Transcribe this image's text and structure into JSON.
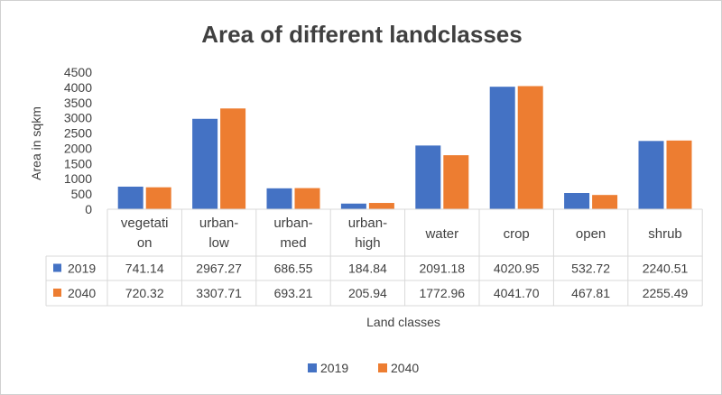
{
  "chart_data": {
    "type": "bar",
    "title": "Area of different landclasses",
    "xlabel": "Land classes",
    "ylabel": "Area in sqkm",
    "ylim": [
      0,
      4500
    ],
    "yticks": [
      0,
      500,
      1000,
      1500,
      2000,
      2500,
      3000,
      3500,
      4000,
      4500
    ],
    "grid": false,
    "legend_position": "bottom",
    "categories": [
      [
        "vegetati",
        "on"
      ],
      [
        "urban-",
        "low"
      ],
      [
        "urban-",
        "med"
      ],
      [
        "urban-",
        "high"
      ],
      [
        "water"
      ],
      [
        "crop"
      ],
      [
        "open"
      ],
      [
        "shrub"
      ]
    ],
    "series": [
      {
        "name": "2019",
        "color": "#4472C4",
        "values": [
          741.14,
          2967.27,
          686.55,
          184.84,
          2091.18,
          4020.95,
          532.72,
          2240.51
        ],
        "labels": [
          "741.14",
          "2967.27",
          "686.55",
          "184.84",
          "2091.18",
          "4020.95",
          "532.72",
          "2240.51"
        ]
      },
      {
        "name": "2040",
        "color": "#ED7D31",
        "values": [
          720.32,
          3307.71,
          693.21,
          205.94,
          1772.96,
          4041.7,
          467.81,
          2255.49
        ],
        "labels": [
          "720.32",
          "3307.71",
          "693.21",
          "205.94",
          "1772.96",
          "4041.70",
          "467.81",
          "2255.49"
        ]
      }
    ]
  }
}
